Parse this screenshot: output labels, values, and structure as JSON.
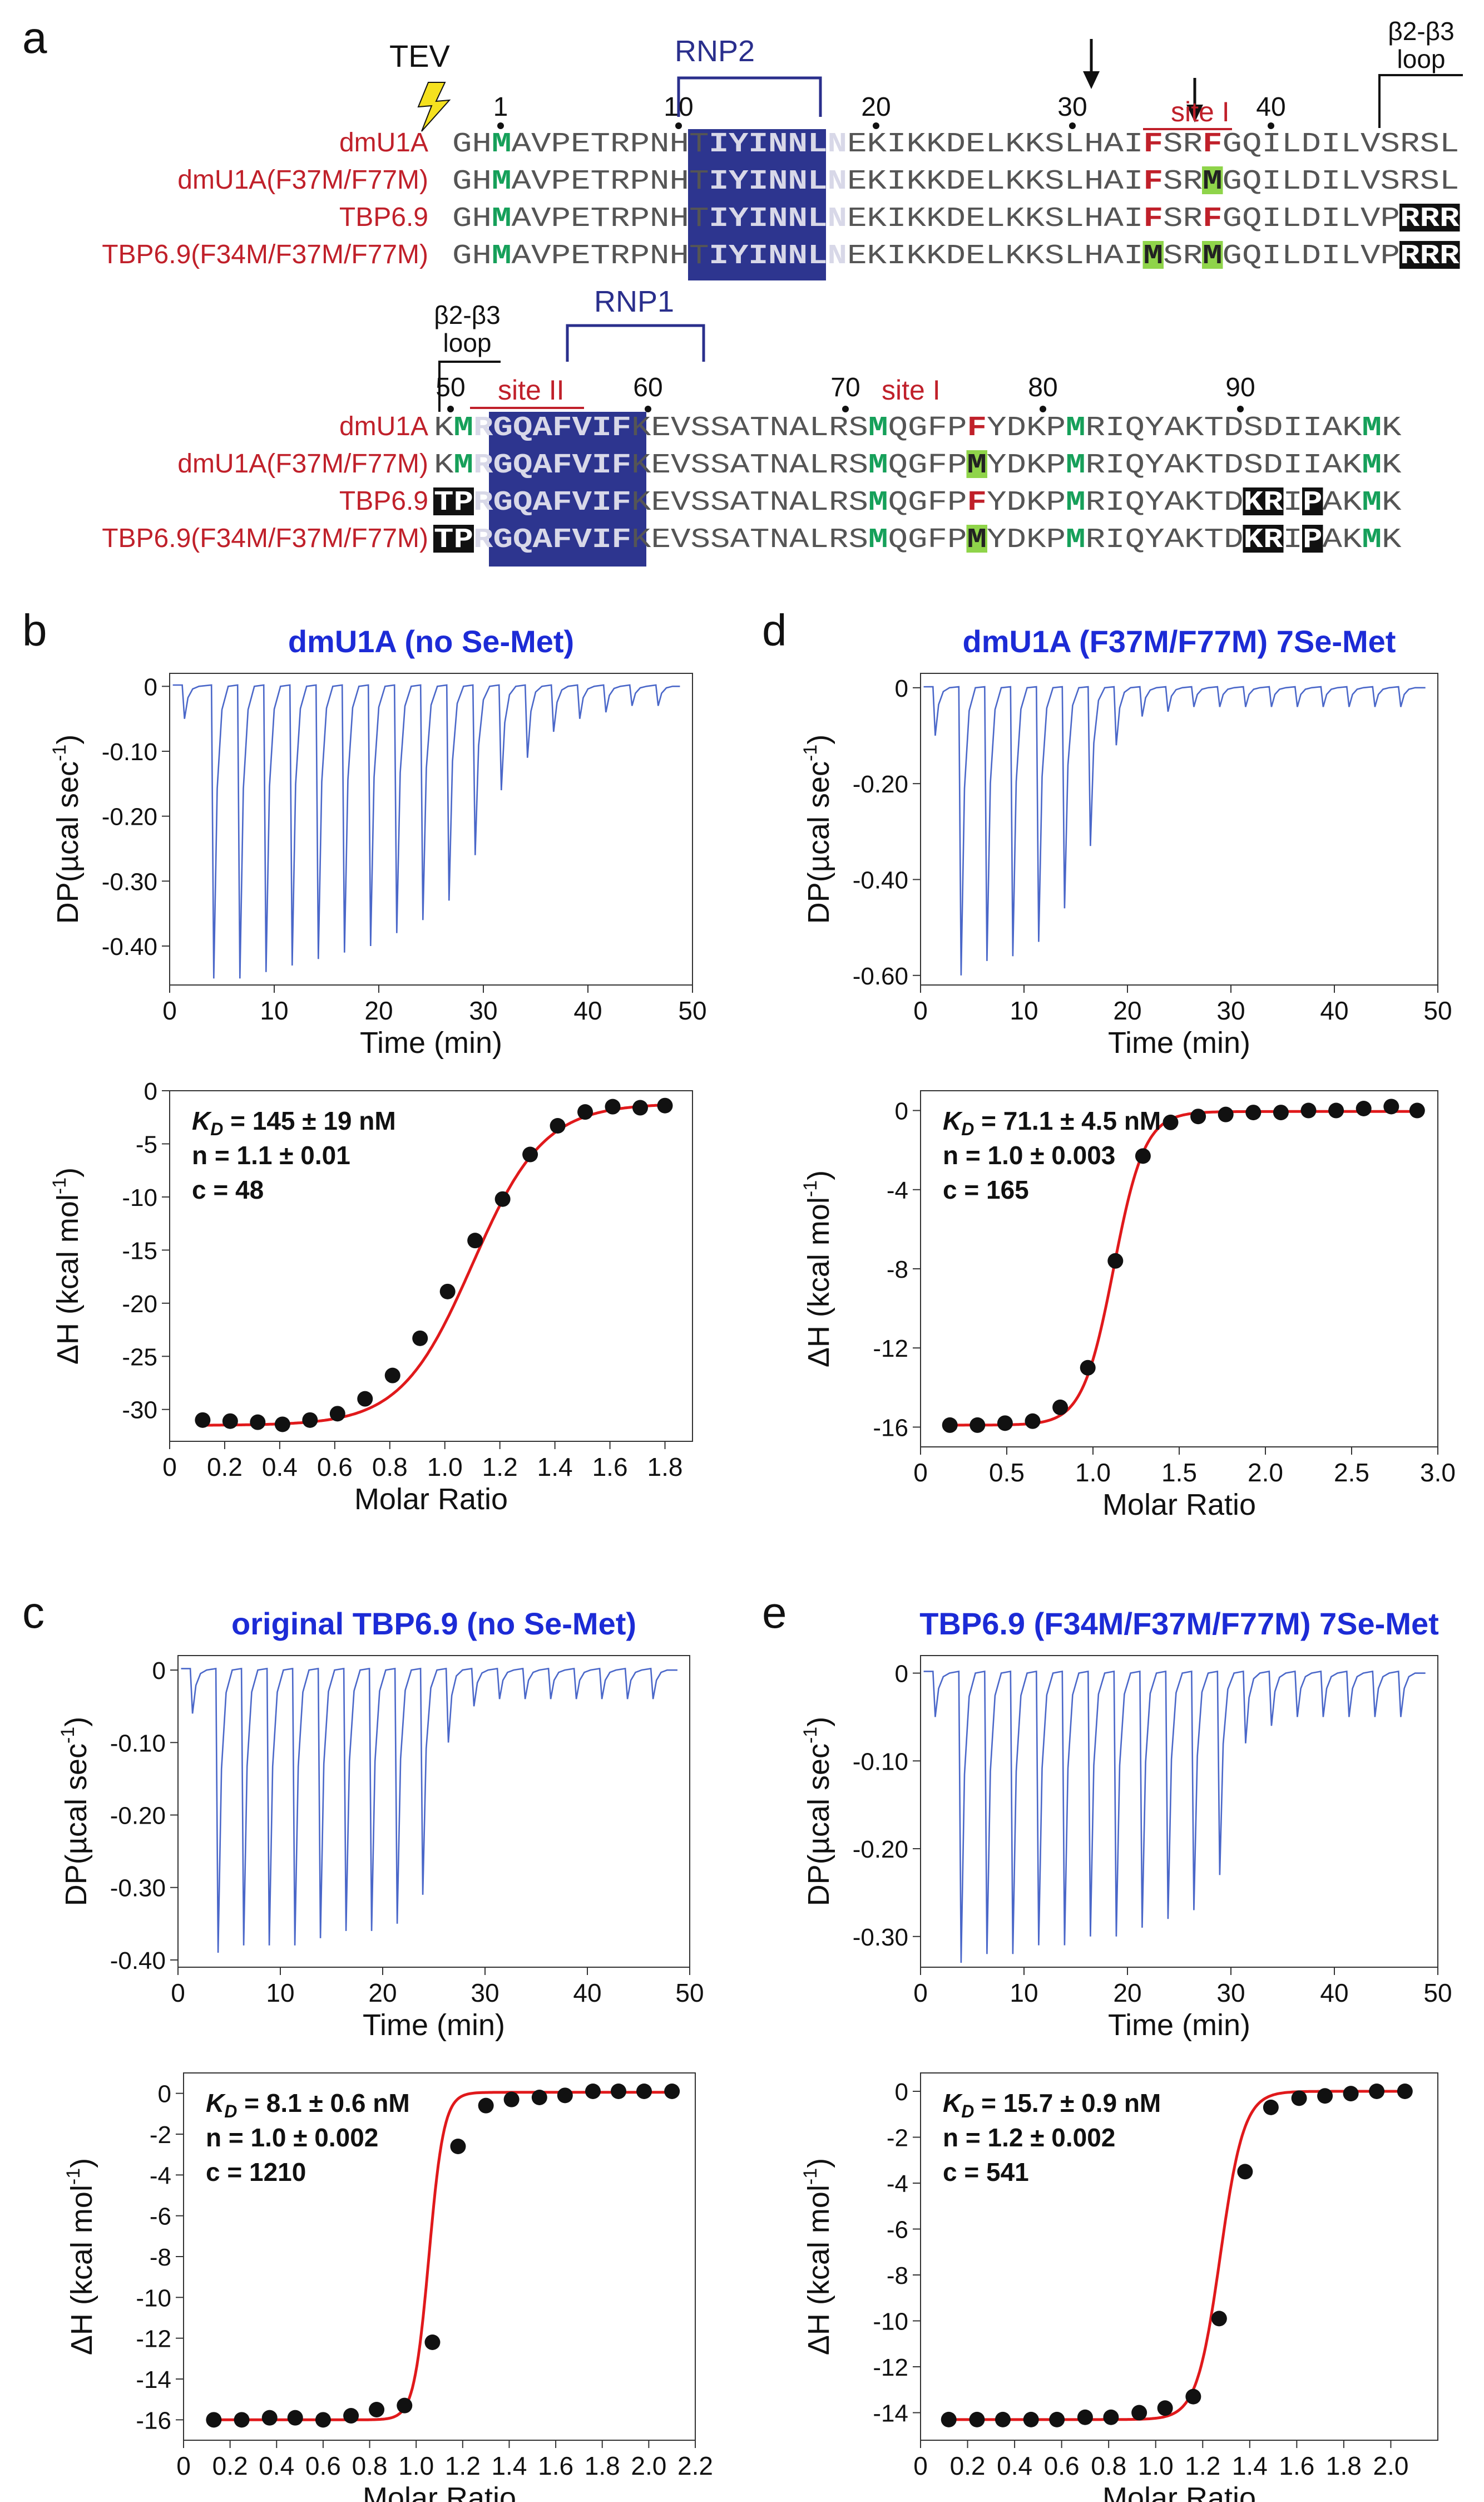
{
  "panel_a": {
    "label": "a",
    "tev": "TEV",
    "rnp2": "RNP2",
    "rnp1": "RNP1",
    "loop_line1": "β2-β3",
    "loop_line2": "loop",
    "site_i": "site I",
    "site_ii": "site II",
    "positions_top": [
      "1",
      "10",
      "20",
      "30",
      "40"
    ],
    "positions_bottom": [
      "50",
      "60",
      "70",
      "80",
      "90"
    ],
    "rows": [
      {
        "name": "dmU1A",
        "top": "GHMAVPETRPNHTIYINNLNEKIKKDELKKSLHAIFSRFGQILDILVSRSL",
        "bottom": "KMRGQAFVIFKEVSSATNALRSMQGFPFYDKPMRIQYAKTDSDIIAKMK"
      },
      {
        "name": "dmU1A(F37M/F77M)",
        "top": "GHMAVPETRPNHTIYINNLNEKIKKDELKKSLHAIFSRMGQILDILVSRSL",
        "bottom": "KMRGQAFVIFKEVSSATNALRSMQGFPMYDKPMRIQYAKTDSDIIAKMK"
      },
      {
        "name": "TBP6.9",
        "top": "GHMAVPETRPNHTIYINNLNEKIKKDELKKSLHAIFSRFGQILDILVPRRR",
        "bottom": "TPRGQAFVIFKEVSSATNALRSMQGFPFYDKPMRIQYAKTDKRIPAKMK"
      },
      {
        "name": "TBP6.9(F34M/F37M/F77M)",
        "top": "GHMAVPETRPNHTIYINNLNEKIKKDELKKSLHAIMSRMGQILDILVPRRR",
        "bottom": "TPRGQAFVIFKEVSSATNALRSMQGFPMYDKPMRIQYAKTDKRIPAKMK"
      }
    ]
  },
  "itc": {
    "dp_label": "DP(µcal sec",
    "dh_label": "ΔH (kcal mol",
    "exp_minus1": "-1",
    "close_paren": ")",
    "time_label": "Time (min)",
    "ratio_label": "Molar Ratio"
  },
  "chart_data": [
    {
      "panel": "b",
      "type": "line",
      "title": "dmU1A (no Se-Met)",
      "xlabel": "Time (min)",
      "ylabel": "DP(µcal sec-1)",
      "xlim": [
        0,
        50
      ],
      "ylim": [
        -0.46,
        0.02
      ],
      "xticks": [
        "0",
        "10",
        "20",
        "30",
        "40",
        "50"
      ],
      "yticks": [
        [
          "0",
          0
        ],
        [
          "-0.10",
          -0.1
        ],
        [
          "-0.20",
          -0.2
        ],
        [
          "-0.30",
          -0.3
        ],
        [
          "-0.40",
          -0.4
        ]
      ],
      "injections": {
        "times": [
          1.3,
          4.1,
          6.6,
          9.1,
          11.6,
          14.1,
          16.6,
          19.1,
          21.6,
          24.1,
          26.6,
          29.1,
          31.6,
          34.1,
          36.6,
          39.1,
          41.6,
          44.1,
          46.6
        ],
        "peaks": [
          -0.05,
          -0.45,
          -0.45,
          -0.44,
          -0.43,
          -0.42,
          -0.41,
          -0.4,
          -0.38,
          -0.36,
          -0.33,
          -0.26,
          -0.16,
          -0.11,
          -0.07,
          -0.05,
          -0.04,
          -0.03,
          -0.03
        ]
      }
    },
    {
      "panel": "b",
      "type": "scatter",
      "fit": "sigmoid",
      "xlabel": "Molar Ratio",
      "ylabel": "ΔH (kcal mol-1)",
      "xlim": [
        0,
        1.9
      ],
      "ylim": [
        -33,
        0
      ],
      "xticks": [
        [
          "0",
          0
        ],
        [
          "0.2",
          0.2
        ],
        [
          "0.4",
          0.4
        ],
        [
          "0.6",
          0.6
        ],
        [
          "0.8",
          0.8
        ],
        [
          "1.0",
          1.0
        ],
        [
          "1.2",
          1.2
        ],
        [
          "1.4",
          1.4
        ],
        [
          "1.6",
          1.6
        ],
        [
          "1.8",
          1.8
        ]
      ],
      "yticks": [
        [
          "0",
          0
        ],
        [
          "-5",
          -5
        ],
        [
          "-10",
          -10
        ],
        [
          "-15",
          -15
        ],
        [
          "-20",
          -20
        ],
        [
          "-25",
          -25
        ],
        [
          "-30",
          -30
        ]
      ],
      "x": [
        0.12,
        0.22,
        0.32,
        0.41,
        0.51,
        0.61,
        0.71,
        0.81,
        0.91,
        1.01,
        1.11,
        1.21,
        1.31,
        1.41,
        1.51,
        1.61,
        1.71,
        1.8
      ],
      "y": [
        -31.0,
        -31.1,
        -31.2,
        -31.4,
        -31.0,
        -30.4,
        -29.0,
        -26.8,
        -23.3,
        -18.9,
        -14.1,
        -10.2,
        -6.0,
        -3.3,
        -2.0,
        -1.5,
        -1.6,
        -1.4
      ],
      "fit_params": {
        "top": -1.2,
        "bottom": -31.5,
        "x0": 1.1,
        "k": 0.13
      },
      "annotation": [
        "K_D = 145 ± 19 nM",
        "n = 1.1 ± 0.01",
        "c = 48"
      ]
    },
    {
      "panel": "c",
      "type": "line",
      "title": "original TBP6.9 (no Se-Met)",
      "xlabel": "Time (min)",
      "ylabel": "DP(µcal sec-1)",
      "xlim": [
        0,
        50
      ],
      "ylim": [
        -0.41,
        0.02
      ],
      "xticks": [
        "0",
        "10",
        "20",
        "30",
        "40",
        "50"
      ],
      "yticks": [
        [
          "0",
          0
        ],
        [
          "-0.10",
          -0.1
        ],
        [
          "-0.20",
          -0.2
        ],
        [
          "-0.30",
          -0.3
        ],
        [
          "-0.40",
          -0.4
        ]
      ],
      "injections": {
        "times": [
          1.3,
          3.8,
          6.3,
          8.8,
          11.3,
          13.8,
          16.3,
          18.8,
          21.3,
          23.8,
          26.3,
          28.8,
          31.3,
          33.8,
          36.3,
          38.8,
          41.3,
          43.8,
          46.3
        ],
        "peaks": [
          -0.06,
          -0.39,
          -0.38,
          -0.38,
          -0.38,
          -0.37,
          -0.36,
          -0.36,
          -0.35,
          -0.31,
          -0.1,
          -0.05,
          -0.04,
          -0.04,
          -0.04,
          -0.04,
          -0.04,
          -0.04,
          -0.04
        ]
      }
    },
    {
      "panel": "c",
      "type": "scatter",
      "fit": "sigmoid",
      "xlabel": "Molar Ratio",
      "ylabel": "ΔH (kcal mol-1)",
      "xlim": [
        0,
        2.2
      ],
      "ylim": [
        -17,
        1
      ],
      "xticks": [
        [
          "0",
          0
        ],
        [
          "0.2",
          0.2
        ],
        [
          "0.4",
          0.4
        ],
        [
          "0.6",
          0.6
        ],
        [
          "0.8",
          0.8
        ],
        [
          "1.0",
          1.0
        ],
        [
          "1.2",
          1.2
        ],
        [
          "1.4",
          1.4
        ],
        [
          "1.6",
          1.6
        ],
        [
          "1.8",
          1.8
        ],
        [
          "2.0",
          2.0
        ],
        [
          "2.2",
          2.2
        ]
      ],
      "yticks": [
        [
          "0",
          0
        ],
        [
          "-2",
          -2
        ],
        [
          "-4",
          -4
        ],
        [
          "-6",
          -6
        ],
        [
          "-8",
          -8
        ],
        [
          "-10",
          -10
        ],
        [
          "-12",
          -12
        ],
        [
          "-14",
          -14
        ],
        [
          "-16",
          -16
        ]
      ],
      "x": [
        0.13,
        0.25,
        0.37,
        0.48,
        0.6,
        0.72,
        0.83,
        0.95,
        1.07,
        1.18,
        1.3,
        1.41,
        1.53,
        1.64,
        1.76,
        1.87,
        1.98,
        2.1
      ],
      "y": [
        -16.0,
        -16.0,
        -15.9,
        -15.9,
        -16.0,
        -15.8,
        -15.5,
        -15.3,
        -12.2,
        -2.6,
        -0.6,
        -0.3,
        -0.2,
        -0.1,
        0.1,
        0.1,
        0.1,
        0.1
      ],
      "fit_params": {
        "top": 0.05,
        "bottom": -16.0,
        "x0": 1.055,
        "k": 0.032
      },
      "annotation": [
        "K_D = 8.1 ± 0.6 nM",
        "n = 1.0 ± 0.002",
        "c = 1210"
      ]
    },
    {
      "panel": "d",
      "type": "line",
      "title": "dmU1A (F37M/F77M) 7Se-Met",
      "xlabel": "Time (min)",
      "ylabel": "DP(µcal sec-1)",
      "xlim": [
        0,
        50
      ],
      "ylim": [
        -0.62,
        0.03
      ],
      "xticks": [
        "0",
        "10",
        "20",
        "30",
        "40",
        "50"
      ],
      "yticks": [
        [
          "0",
          0
        ],
        [
          "-0.20",
          -0.2
        ],
        [
          "-0.40",
          -0.4
        ],
        [
          "-0.60",
          -0.6
        ]
      ],
      "injections": {
        "times": [
          1.3,
          3.8,
          6.3,
          8.8,
          11.3,
          13.8,
          16.3,
          18.8,
          21.3,
          23.8,
          26.3,
          28.8,
          31.3,
          33.8,
          36.3,
          38.8,
          41.3,
          43.8,
          46.3
        ],
        "peaks": [
          -0.1,
          -0.6,
          -0.57,
          -0.56,
          -0.53,
          -0.46,
          -0.33,
          -0.12,
          -0.06,
          -0.05,
          -0.04,
          -0.04,
          -0.04,
          -0.04,
          -0.04,
          -0.04,
          -0.04,
          -0.04,
          -0.04
        ]
      }
    },
    {
      "panel": "d",
      "type": "scatter",
      "fit": "sigmoid",
      "xlabel": "Molar Ratio",
      "ylabel": "ΔH (kcal mol-1)",
      "xlim": [
        0,
        3.0
      ],
      "ylim": [
        -17,
        1
      ],
      "xticks": [
        [
          "0",
          0
        ],
        [
          "0.5",
          0.5
        ],
        [
          "1.0",
          1.0
        ],
        [
          "1.5",
          1.5
        ],
        [
          "2.0",
          2.0
        ],
        [
          "2.5",
          2.5
        ],
        [
          "3.0",
          3.0
        ]
      ],
      "yticks": [
        [
          "0",
          0
        ],
        [
          "-4",
          -4
        ],
        [
          "-8",
          -8
        ],
        [
          "-12",
          -12
        ],
        [
          "-16",
          -16
        ]
      ],
      "x": [
        0.17,
        0.33,
        0.49,
        0.65,
        0.81,
        0.97,
        1.13,
        1.29,
        1.45,
        1.61,
        1.77,
        1.93,
        2.09,
        2.25,
        2.41,
        2.57,
        2.73,
        2.88
      ],
      "y": [
        -15.9,
        -15.9,
        -15.8,
        -15.7,
        -15.0,
        -13.0,
        -7.6,
        -2.3,
        -0.6,
        -0.3,
        -0.2,
        -0.1,
        -0.1,
        0.0,
        0.0,
        0.1,
        0.2,
        0.0
      ],
      "fit_params": {
        "top": -0.05,
        "bottom": -15.9,
        "x0": 1.12,
        "k": 0.09
      },
      "annotation": [
        "K_D = 71.1 ± 4.5 nM",
        "n = 1.0 ± 0.003",
        "c = 165"
      ]
    },
    {
      "panel": "e",
      "type": "line",
      "title": "TBP6.9 (F34M/F37M/F77M) 7Se-Met",
      "xlabel": "Time (min)",
      "ylabel": "DP(µcal sec-1)",
      "xlim": [
        0,
        50
      ],
      "ylim": [
        -0.335,
        0.02
      ],
      "xticks": [
        "0",
        "10",
        "20",
        "30",
        "40",
        "50"
      ],
      "yticks": [
        [
          "0",
          0
        ],
        [
          "-0.10",
          -0.1
        ],
        [
          "-0.20",
          -0.2
        ],
        [
          "-0.30",
          -0.3
        ]
      ],
      "injections": {
        "times": [
          1.3,
          3.8,
          6.3,
          8.8,
          11.3,
          13.8,
          16.3,
          18.8,
          21.3,
          23.8,
          26.3,
          28.8,
          31.3,
          33.8,
          36.3,
          38.8,
          41.3,
          43.8,
          46.3
        ],
        "peaks": [
          -0.05,
          -0.33,
          -0.32,
          -0.32,
          -0.31,
          -0.31,
          -0.3,
          -0.3,
          -0.29,
          -0.28,
          -0.27,
          -0.23,
          -0.08,
          -0.06,
          -0.05,
          -0.05,
          -0.05,
          -0.05,
          -0.05
        ]
      }
    },
    {
      "panel": "e",
      "type": "scatter",
      "fit": "sigmoid",
      "xlabel": "Molar Ratio",
      "ylabel": "ΔH (kcal mol-1)",
      "xlim": [
        0,
        2.2
      ],
      "ylim": [
        -15.2,
        0.8
      ],
      "xticks": [
        [
          "0",
          0
        ],
        [
          "0.2",
          0.2
        ],
        [
          "0.4",
          0.4
        ],
        [
          "0.6",
          0.6
        ],
        [
          "0.8",
          0.8
        ],
        [
          "1.0",
          1.0
        ],
        [
          "1.2",
          1.2
        ],
        [
          "1.4",
          1.4
        ],
        [
          "1.6",
          1.6
        ],
        [
          "1.8",
          1.8
        ],
        [
          "2.0",
          2.0
        ]
      ],
      "yticks": [
        [
          "0",
          0
        ],
        [
          "-2",
          -2
        ],
        [
          "-4",
          -4
        ],
        [
          "-6",
          -6
        ],
        [
          "-8",
          -8
        ],
        [
          "-10",
          -10
        ],
        [
          "-12",
          -12
        ],
        [
          "-14",
          -14
        ]
      ],
      "x": [
        0.12,
        0.24,
        0.35,
        0.47,
        0.58,
        0.7,
        0.81,
        0.93,
        1.04,
        1.16,
        1.27,
        1.38,
        1.49,
        1.61,
        1.72,
        1.83,
        1.94,
        2.06
      ],
      "y": [
        -14.3,
        -14.3,
        -14.3,
        -14.3,
        -14.3,
        -14.2,
        -14.2,
        -14.0,
        -13.8,
        -13.3,
        -9.9,
        -3.5,
        -0.7,
        -0.3,
        -0.2,
        -0.1,
        0.0,
        0.0
      ],
      "fit_params": {
        "top": 0.0,
        "bottom": -14.3,
        "x0": 1.275,
        "k": 0.05
      },
      "annotation": [
        "K_D = 15.7 ± 0.9 nM",
        "n = 1.2 ± 0.002",
        "c = 541"
      ]
    }
  ]
}
